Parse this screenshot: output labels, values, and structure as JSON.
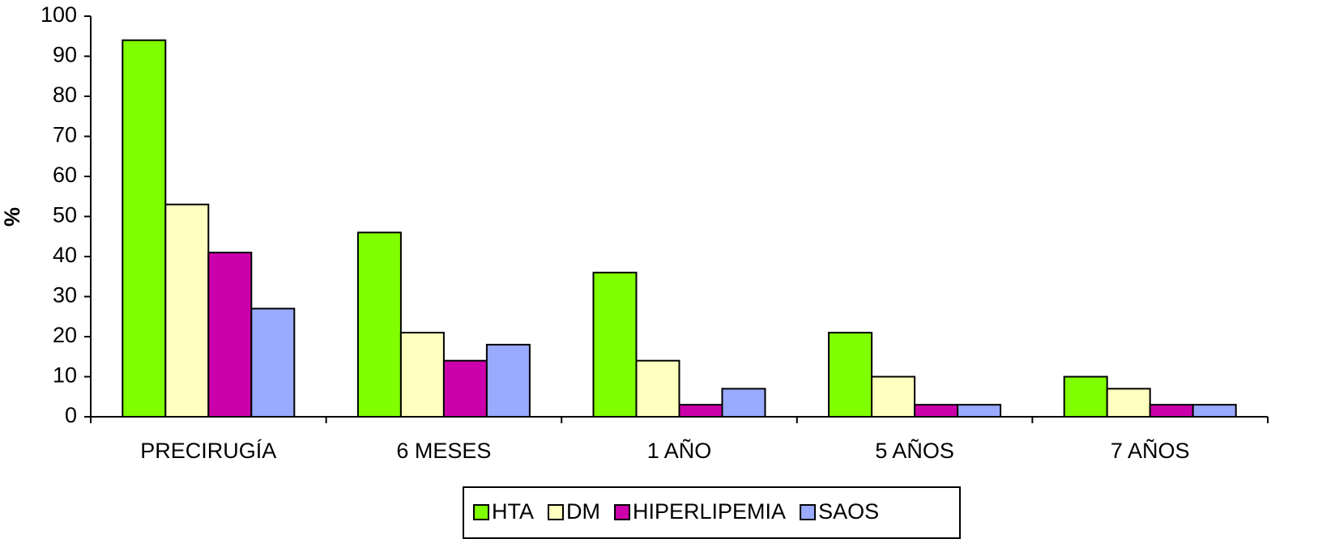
{
  "chart_data": {
    "type": "bar",
    "y_label": "%",
    "categories": [
      "PRECIRUGÍA",
      "6 MESES",
      "1 AÑO",
      "5 AÑOS",
      "7 AÑOS"
    ],
    "series": [
      {
        "name": "HTA",
        "color": "#80ff00",
        "values": [
          94,
          46,
          36,
          21,
          10
        ]
      },
      {
        "name": "DM",
        "color": "#ffffc0",
        "values": [
          53,
          21,
          14,
          10,
          7
        ]
      },
      {
        "name": "HIPERLIPEMIA",
        "color": "#cc00aa",
        "values": [
          41,
          14,
          3,
          3,
          3
        ]
      },
      {
        "name": "SAOS",
        "color": "#99aaff",
        "values": [
          27,
          18,
          7,
          3,
          3
        ]
      }
    ],
    "ylim": [
      0,
      100
    ],
    "yticks": [
      0,
      10,
      20,
      30,
      40,
      50,
      60,
      70,
      80,
      90,
      100
    ],
    "grid": false,
    "legend": "bottom"
  }
}
